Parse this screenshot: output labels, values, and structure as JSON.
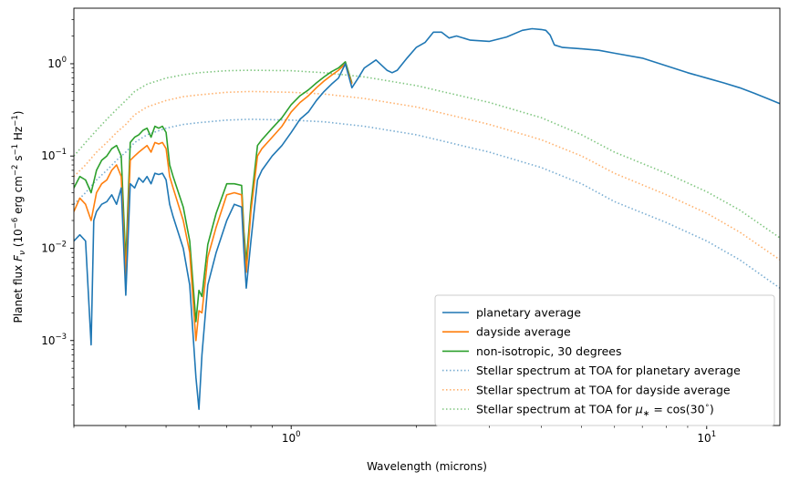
{
  "chart_data": {
    "type": "line",
    "xscale": "log",
    "yscale": "log",
    "xlim": [
      0.3,
      15
    ],
    "ylim": [
      0.00012,
      4
    ],
    "xlabel": "Wavelength (microns)",
    "ylabel_parts": {
      "prefix": "Planet flux ",
      "var": "F",
      "sub": "ν",
      "mid": " (10",
      "exp1": "−6",
      "units1": " erg cm",
      "exp2": "−2",
      "units2": " s",
      "exp3": "−1",
      "units3": " Hz",
      "exp4": "−1",
      "suffix": ")"
    },
    "x_ticks": [
      {
        "value": 1,
        "base": "10",
        "exp": "0"
      },
      {
        "value": 10,
        "base": "10",
        "exp": "1"
      }
    ],
    "y_ticks": [
      {
        "value": 0.001,
        "base": "10",
        "exp": "−3"
      },
      {
        "value": 0.01,
        "base": "10",
        "exp": "−2"
      },
      {
        "value": 0.1,
        "base": "10",
        "exp": "−1"
      },
      {
        "value": 1,
        "base": "10",
        "exp": "0"
      }
    ],
    "legend_position": "lower-right",
    "series": [
      {
        "name": "planetary average",
        "color": "#1f77b4",
        "style": "solid",
        "x": [
          0.3,
          0.31,
          0.32,
          0.33,
          0.335,
          0.34,
          0.35,
          0.36,
          0.37,
          0.38,
          0.39,
          0.4,
          0.41,
          0.42,
          0.43,
          0.44,
          0.45,
          0.46,
          0.47,
          0.48,
          0.49,
          0.5,
          0.51,
          0.52,
          0.55,
          0.57,
          0.59,
          0.6,
          0.61,
          0.63,
          0.66,
          0.7,
          0.73,
          0.76,
          0.77,
          0.78,
          0.8,
          0.83,
          0.85,
          0.9,
          0.95,
          1.0,
          1.05,
          1.1,
          1.15,
          1.2,
          1.25,
          1.3,
          1.35,
          1.4,
          1.45,
          1.5,
          1.6,
          1.7,
          1.75,
          1.8,
          1.9,
          2.0,
          2.1,
          2.2,
          2.3,
          2.4,
          2.5,
          2.7,
          3.0,
          3.3,
          3.6,
          3.8,
          4.0,
          4.1,
          4.2,
          4.3,
          4.5,
          5.0,
          5.5,
          6.0,
          7.0,
          8.0,
          9.0,
          10.0,
          11.0,
          12.0,
          13.0,
          14.0,
          15.0
        ],
        "y": [
          0.012,
          0.014,
          0.012,
          0.0009,
          0.02,
          0.025,
          0.03,
          0.032,
          0.038,
          0.03,
          0.045,
          0.0031,
          0.05,
          0.045,
          0.058,
          0.052,
          0.06,
          0.05,
          0.065,
          0.063,
          0.065,
          0.055,
          0.03,
          0.022,
          0.01,
          0.004,
          0.0004,
          0.00018,
          0.0007,
          0.004,
          0.009,
          0.02,
          0.03,
          0.028,
          0.009,
          0.0037,
          0.012,
          0.055,
          0.07,
          0.1,
          0.13,
          0.18,
          0.25,
          0.3,
          0.4,
          0.5,
          0.6,
          0.7,
          1.0,
          0.55,
          0.7,
          0.9,
          1.1,
          0.85,
          0.8,
          0.85,
          1.15,
          1.5,
          1.7,
          2.2,
          2.2,
          1.9,
          2.0,
          1.8,
          1.75,
          1.95,
          2.3,
          2.4,
          2.35,
          2.3,
          2.05,
          1.6,
          1.5,
          1.45,
          1.4,
          1.3,
          1.15,
          0.95,
          0.8,
          0.7,
          0.62,
          0.55,
          0.48,
          0.42,
          0.37
        ]
      },
      {
        "name": "dayside average",
        "color": "#ff7f0e",
        "style": "solid",
        "x": [
          0.3,
          0.31,
          0.32,
          0.33,
          0.34,
          0.35,
          0.36,
          0.37,
          0.38,
          0.39,
          0.4,
          0.41,
          0.42,
          0.43,
          0.44,
          0.45,
          0.46,
          0.47,
          0.48,
          0.49,
          0.5,
          0.51,
          0.52,
          0.55,
          0.57,
          0.59,
          0.6,
          0.61,
          0.63,
          0.66,
          0.7,
          0.73,
          0.76,
          0.77,
          0.78,
          0.8,
          0.83,
          0.85,
          0.9,
          0.95,
          1.0,
          1.05,
          1.1,
          1.15,
          1.2,
          1.25,
          1.3,
          1.35,
          1.4
        ],
        "y": [
          0.025,
          0.035,
          0.03,
          0.02,
          0.04,
          0.05,
          0.055,
          0.07,
          0.08,
          0.06,
          0.005,
          0.09,
          0.1,
          0.11,
          0.12,
          0.13,
          0.11,
          0.14,
          0.135,
          0.14,
          0.12,
          0.06,
          0.045,
          0.02,
          0.009,
          0.001,
          0.0021,
          0.002,
          0.008,
          0.017,
          0.038,
          0.04,
          0.038,
          0.012,
          0.0055,
          0.025,
          0.1,
          0.12,
          0.16,
          0.21,
          0.3,
          0.38,
          0.45,
          0.55,
          0.65,
          0.75,
          0.85,
          1.0,
          0.6
        ]
      },
      {
        "name": "non-isotropic, 30 degrees",
        "color": "#2ca02c",
        "style": "solid",
        "x": [
          0.3,
          0.31,
          0.32,
          0.33,
          0.34,
          0.35,
          0.36,
          0.37,
          0.38,
          0.39,
          0.4,
          0.41,
          0.42,
          0.43,
          0.44,
          0.45,
          0.46,
          0.47,
          0.48,
          0.49,
          0.5,
          0.51,
          0.52,
          0.55,
          0.57,
          0.59,
          0.6,
          0.61,
          0.63,
          0.66,
          0.7,
          0.73,
          0.76,
          0.77,
          0.78,
          0.8,
          0.83,
          0.85,
          0.9,
          0.95,
          1.0,
          1.05,
          1.1,
          1.15,
          1.2,
          1.25,
          1.3,
          1.35,
          1.4
        ],
        "y": [
          0.045,
          0.06,
          0.055,
          0.04,
          0.07,
          0.09,
          0.1,
          0.12,
          0.13,
          0.1,
          0.007,
          0.14,
          0.16,
          0.17,
          0.19,
          0.2,
          0.16,
          0.21,
          0.2,
          0.21,
          0.18,
          0.08,
          0.06,
          0.028,
          0.012,
          0.0016,
          0.0035,
          0.003,
          0.011,
          0.024,
          0.05,
          0.05,
          0.048,
          0.015,
          0.007,
          0.03,
          0.13,
          0.15,
          0.2,
          0.26,
          0.36,
          0.45,
          0.52,
          0.62,
          0.72,
          0.82,
          0.9,
          1.05,
          0.62
        ]
      },
      {
        "name": "Stellar spectrum at TOA for planetary average",
        "color": "#1f77b4",
        "style": "dotted",
        "x": [
          0.3,
          0.32,
          0.34,
          0.36,
          0.38,
          0.4,
          0.42,
          0.45,
          0.5,
          0.55,
          0.6,
          0.7,
          0.8,
          1.0,
          1.2,
          1.5,
          2.0,
          3.0,
          4.0,
          5.0,
          6.0,
          8.0,
          10.0,
          12.0,
          15.0
        ],
        "y": [
          0.03,
          0.04,
          0.055,
          0.07,
          0.09,
          0.11,
          0.14,
          0.17,
          0.2,
          0.22,
          0.23,
          0.245,
          0.25,
          0.245,
          0.235,
          0.21,
          0.17,
          0.11,
          0.075,
          0.05,
          0.032,
          0.019,
          0.012,
          0.0075,
          0.0037
        ]
      },
      {
        "name": "Stellar spectrum at TOA for dayside average",
        "color": "#ff7f0e",
        "style": "dotted",
        "x": [
          0.3,
          0.32,
          0.34,
          0.36,
          0.38,
          0.4,
          0.42,
          0.45,
          0.5,
          0.55,
          0.6,
          0.7,
          0.8,
          1.0,
          1.2,
          1.5,
          2.0,
          3.0,
          4.0,
          5.0,
          6.0,
          8.0,
          10.0,
          12.0,
          15.0
        ],
        "y": [
          0.06,
          0.08,
          0.11,
          0.14,
          0.18,
          0.22,
          0.28,
          0.34,
          0.4,
          0.44,
          0.46,
          0.49,
          0.5,
          0.49,
          0.47,
          0.42,
          0.34,
          0.22,
          0.15,
          0.1,
          0.065,
          0.038,
          0.024,
          0.015,
          0.0075
        ]
      },
      {
        "name": "Stellar spectrum at TOA for μ∗ = cos(30°)",
        "legend_math": {
          "prefix": "Stellar spectrum at TOA for ",
          "mu": "μ",
          "star": "∗",
          "eq": " = cos(30",
          "deg": "∘",
          "suffix": ")"
        },
        "color": "#2ca02c",
        "style": "dotted",
        "x": [
          0.3,
          0.32,
          0.34,
          0.36,
          0.38,
          0.4,
          0.42,
          0.45,
          0.5,
          0.55,
          0.6,
          0.7,
          0.8,
          1.0,
          1.2,
          1.5,
          2.0,
          3.0,
          4.0,
          5.0,
          6.0,
          8.0,
          10.0,
          12.0,
          15.0
        ],
        "y": [
          0.1,
          0.14,
          0.19,
          0.25,
          0.32,
          0.4,
          0.5,
          0.6,
          0.7,
          0.76,
          0.8,
          0.84,
          0.85,
          0.84,
          0.8,
          0.72,
          0.58,
          0.38,
          0.26,
          0.17,
          0.11,
          0.065,
          0.041,
          0.026,
          0.013
        ]
      }
    ]
  }
}
